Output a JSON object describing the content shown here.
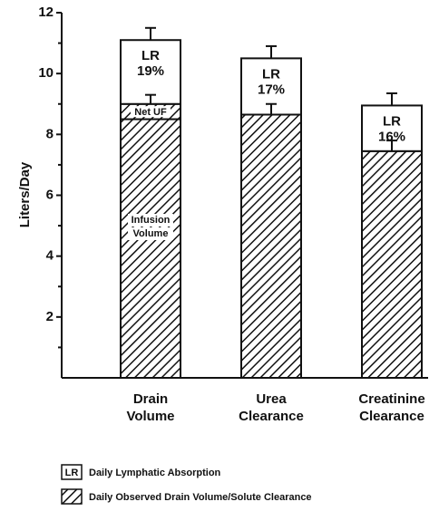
{
  "chart_data": {
    "type": "stacked_bar",
    "ylabel": "Liters/Day",
    "categories": [
      [
        "Drain",
        "Volume"
      ],
      [
        "Urea",
        "Clearance"
      ],
      [
        "Creatinine",
        "Clearance"
      ]
    ],
    "ylim": [
      0,
      12
    ],
    "yticks": [
      2,
      4,
      6,
      8,
      10,
      12
    ],
    "minor_yticks": [
      1,
      3,
      5,
      7,
      9,
      11
    ],
    "series": [
      {
        "name": "Daily Observed Drain Volume/Solute Clearance",
        "fill": "hatch",
        "in_legend": true,
        "values": [
          8.5,
          8.65,
          7.45
        ],
        "errors": [
          null,
          0.35,
          0.35
        ]
      },
      {
        "name": "Net UF",
        "fill": "hatch",
        "in_legend": false,
        "values": [
          0.5,
          null,
          null
        ],
        "errors": [
          0.3,
          null,
          null
        ]
      },
      {
        "name": "Daily Lymphatic Absorption",
        "fill": "white",
        "in_legend": true,
        "values": [
          2.1,
          1.85,
          1.5
        ],
        "errors": [
          0.4,
          0.4,
          0.4
        ]
      }
    ],
    "lr_abbrev": "LR",
    "lr_labels": [
      "19%",
      "17%",
      "16%"
    ],
    "infusion_label": [
      "Infusion",
      "Volume"
    ]
  }
}
